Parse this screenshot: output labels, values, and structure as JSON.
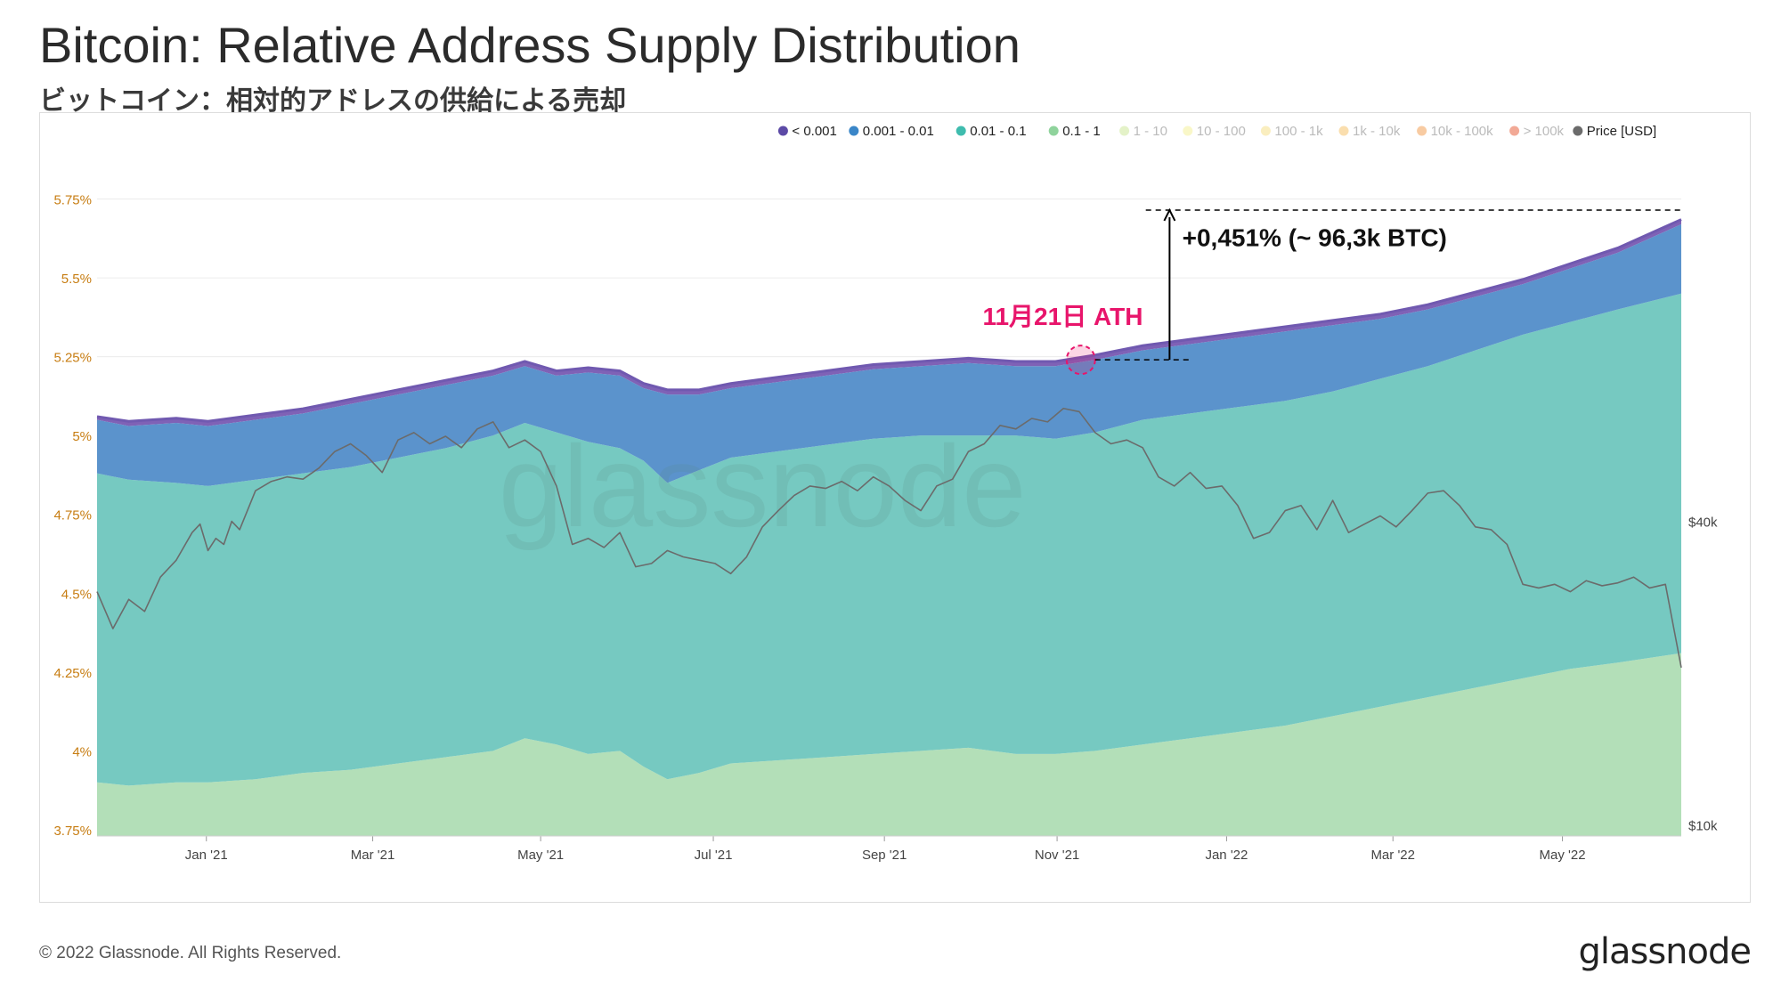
{
  "title": "Bitcoin: Relative Address Supply Distribution",
  "subtitle": "ビットコイン：相対的アドレスの供給による売却",
  "footer": {
    "copyright": "© 2022 Glassnode. All Rights Reserved.",
    "logo": "glassnode"
  },
  "watermark": "glassnode",
  "colors": {
    "lt0001": "#7f62b6",
    "b0001_001": "#5b93cc",
    "b001_01": "#76c9c1",
    "b01_1": "#b3dfb8",
    "price": "#6b6b6b",
    "annotation": "#e8156b",
    "axis_left": "#c77d12"
  },
  "chart_data": {
    "type": "area",
    "title": "Bitcoin: Relative Address Supply Distribution",
    "stacked": true,
    "x_ticks": [
      "Jan '21",
      "Mar '21",
      "May '21",
      "Jul '21",
      "Sep '21",
      "Nov '21",
      "Jan '22",
      "Mar '22",
      "May '22"
    ],
    "x_tick_pos": [
      0.069,
      0.174,
      0.28,
      0.389,
      0.497,
      0.606,
      0.713,
      0.818,
      0.925
    ],
    "y_left": {
      "ticks": [
        "5.75%",
        "5.5%",
        "5.25%",
        "5%",
        "4.75%",
        "4.5%",
        "4.25%",
        "4%",
        "3.75%"
      ],
      "values": [
        5.75,
        5.5,
        5.25,
        5.0,
        4.75,
        4.5,
        4.25,
        4.0,
        3.75
      ],
      "range": [
        3.73,
        6.0
      ]
    },
    "y_right": {
      "ticks": [
        "$40k",
        "$10k"
      ],
      "values": [
        40000,
        10000
      ],
      "scale": "log",
      "range": [
        9500,
        250000
      ]
    },
    "legend": [
      {
        "label": "< 0.001",
        "color": "#5c4aa6",
        "active": true
      },
      {
        "label": "0.001 - 0.01",
        "color": "#3a86c8",
        "active": true
      },
      {
        "label": "0.01 - 0.1",
        "color": "#3fbcae",
        "active": true
      },
      {
        "label": "0.1 - 1",
        "color": "#8fd39c",
        "active": true
      },
      {
        "label": "1 - 10",
        "color": "#cde89a",
        "active": false
      },
      {
        "label": "10 - 100",
        "color": "#f4f09a",
        "active": false
      },
      {
        "label": "100 - 1k",
        "color": "#f6e08a",
        "active": false
      },
      {
        "label": "1k - 10k",
        "color": "#f6c36b",
        "active": false
      },
      {
        "label": "10k - 100k",
        "color": "#f2a055",
        "active": false
      },
      {
        "label": "> 100k",
        "color": "#e8623f",
        "active": false
      },
      {
        "label": "Price [USD]",
        "color": "#6b6b6b",
        "active": true
      }
    ],
    "series_x": [
      0,
      0.02,
      0.05,
      0.07,
      0.1,
      0.13,
      0.16,
      0.19,
      0.22,
      0.25,
      0.27,
      0.29,
      0.31,
      0.33,
      0.345,
      0.36,
      0.38,
      0.4,
      0.43,
      0.46,
      0.49,
      0.52,
      0.55,
      0.58,
      0.605,
      0.63,
      0.66,
      0.69,
      0.72,
      0.75,
      0.78,
      0.81,
      0.84,
      0.87,
      0.9,
      0.93,
      0.96,
      1.0
    ],
    "series": [
      {
        "name": "0.1 - 1",
        "values": [
          3.9,
          3.89,
          3.9,
          3.9,
          3.91,
          3.93,
          3.94,
          3.96,
          3.98,
          4.0,
          4.04,
          4.02,
          3.99,
          4.0,
          3.95,
          3.91,
          3.93,
          3.96,
          3.97,
          3.98,
          3.99,
          4.0,
          4.01,
          3.99,
          3.99,
          4.0,
          4.02,
          4.04,
          4.06,
          4.08,
          4.11,
          4.14,
          4.17,
          4.2,
          4.23,
          4.26,
          4.28,
          4.31
        ]
      },
      {
        "name": "0.01 - 0.1",
        "values": [
          4.88,
          4.86,
          4.85,
          4.84,
          4.86,
          4.88,
          4.9,
          4.93,
          4.96,
          5.0,
          5.04,
          5.01,
          4.98,
          4.96,
          4.92,
          4.85,
          4.89,
          4.93,
          4.95,
          4.97,
          4.99,
          5.0,
          5.0,
          5.0,
          4.99,
          5.01,
          5.05,
          5.07,
          5.09,
          5.11,
          5.14,
          5.18,
          5.22,
          5.27,
          5.32,
          5.36,
          5.4,
          5.45
        ]
      },
      {
        "name": "0.001 - 0.01",
        "values": [
          5.05,
          5.03,
          5.04,
          5.03,
          5.05,
          5.07,
          5.1,
          5.13,
          5.16,
          5.19,
          5.22,
          5.19,
          5.2,
          5.19,
          5.15,
          5.13,
          5.13,
          5.15,
          5.17,
          5.19,
          5.21,
          5.22,
          5.23,
          5.22,
          5.22,
          5.24,
          5.27,
          5.29,
          5.31,
          5.33,
          5.35,
          5.37,
          5.4,
          5.44,
          5.48,
          5.53,
          5.58,
          5.67
        ]
      },
      {
        "name": "< 0.001",
        "values": [
          5.06,
          5.045,
          5.055,
          5.045,
          5.065,
          5.085,
          5.115,
          5.145,
          5.175,
          5.205,
          5.235,
          5.205,
          5.215,
          5.205,
          5.165,
          5.145,
          5.145,
          5.165,
          5.185,
          5.205,
          5.225,
          5.235,
          5.245,
          5.235,
          5.235,
          5.255,
          5.285,
          5.305,
          5.325,
          5.345,
          5.365,
          5.385,
          5.415,
          5.455,
          5.495,
          5.545,
          5.595,
          5.685
        ]
      }
    ],
    "price_x": [
      0,
      0.01,
      0.02,
      0.03,
      0.04,
      0.05,
      0.06,
      0.065,
      0.07,
      0.075,
      0.08,
      0.085,
      0.09,
      0.1,
      0.11,
      0.12,
      0.13,
      0.14,
      0.15,
      0.16,
      0.17,
      0.18,
      0.19,
      0.2,
      0.21,
      0.22,
      0.23,
      0.24,
      0.25,
      0.26,
      0.27,
      0.28,
      0.29,
      0.3,
      0.31,
      0.32,
      0.33,
      0.34,
      0.35,
      0.36,
      0.37,
      0.38,
      0.39,
      0.4,
      0.41,
      0.42,
      0.43,
      0.44,
      0.45,
      0.46,
      0.47,
      0.48,
      0.49,
      0.5,
      0.51,
      0.52,
      0.53,
      0.54,
      0.55,
      0.56,
      0.57,
      0.58,
      0.59,
      0.6,
      0.61,
      0.62,
      0.63,
      0.64,
      0.65,
      0.66,
      0.67,
      0.68,
      0.69,
      0.7,
      0.71,
      0.72,
      0.73,
      0.74,
      0.75,
      0.76,
      0.77,
      0.78,
      0.79,
      0.8,
      0.81,
      0.82,
      0.83,
      0.84,
      0.85,
      0.86,
      0.87,
      0.88,
      0.89,
      0.9,
      0.91,
      0.92,
      0.93,
      0.94,
      0.95,
      0.96,
      0.97,
      0.98,
      0.99,
      1.0
    ],
    "price": [
      29000,
      24500,
      28000,
      26500,
      31000,
      33500,
      38000,
      39500,
      35000,
      37000,
      36000,
      40000,
      38500,
      46000,
      48000,
      49000,
      48500,
      51000,
      55000,
      57000,
      54000,
      50000,
      58000,
      60000,
      57000,
      59000,
      56000,
      61000,
      63000,
      56000,
      58000,
      55000,
      47000,
      36000,
      37000,
      35500,
      38000,
      32500,
      33000,
      35000,
      34000,
      33500,
      33000,
      31500,
      34000,
      39000,
      42000,
      45000,
      47000,
      46500,
      48000,
      46000,
      49000,
      47000,
      44000,
      42000,
      47000,
      48500,
      55000,
      57000,
      62000,
      61000,
      64000,
      63000,
      67000,
      66000,
      60000,
      57000,
      58000,
      56000,
      49000,
      47000,
      50000,
      46500,
      47000,
      43000,
      37000,
      38000,
      42000,
      43000,
      38500,
      44000,
      38000,
      39500,
      41000,
      39000,
      42000,
      45500,
      46000,
      43000,
      39000,
      38500,
      36000,
      30000,
      29500,
      30000,
      29000,
      30500,
      29800,
      30200,
      31000,
      29500,
      30000,
      20500
    ]
  },
  "annotations": {
    "ath_label": "11月21日 ATH",
    "delta_label": "+0,451% (~ 96,3k BTC)"
  }
}
